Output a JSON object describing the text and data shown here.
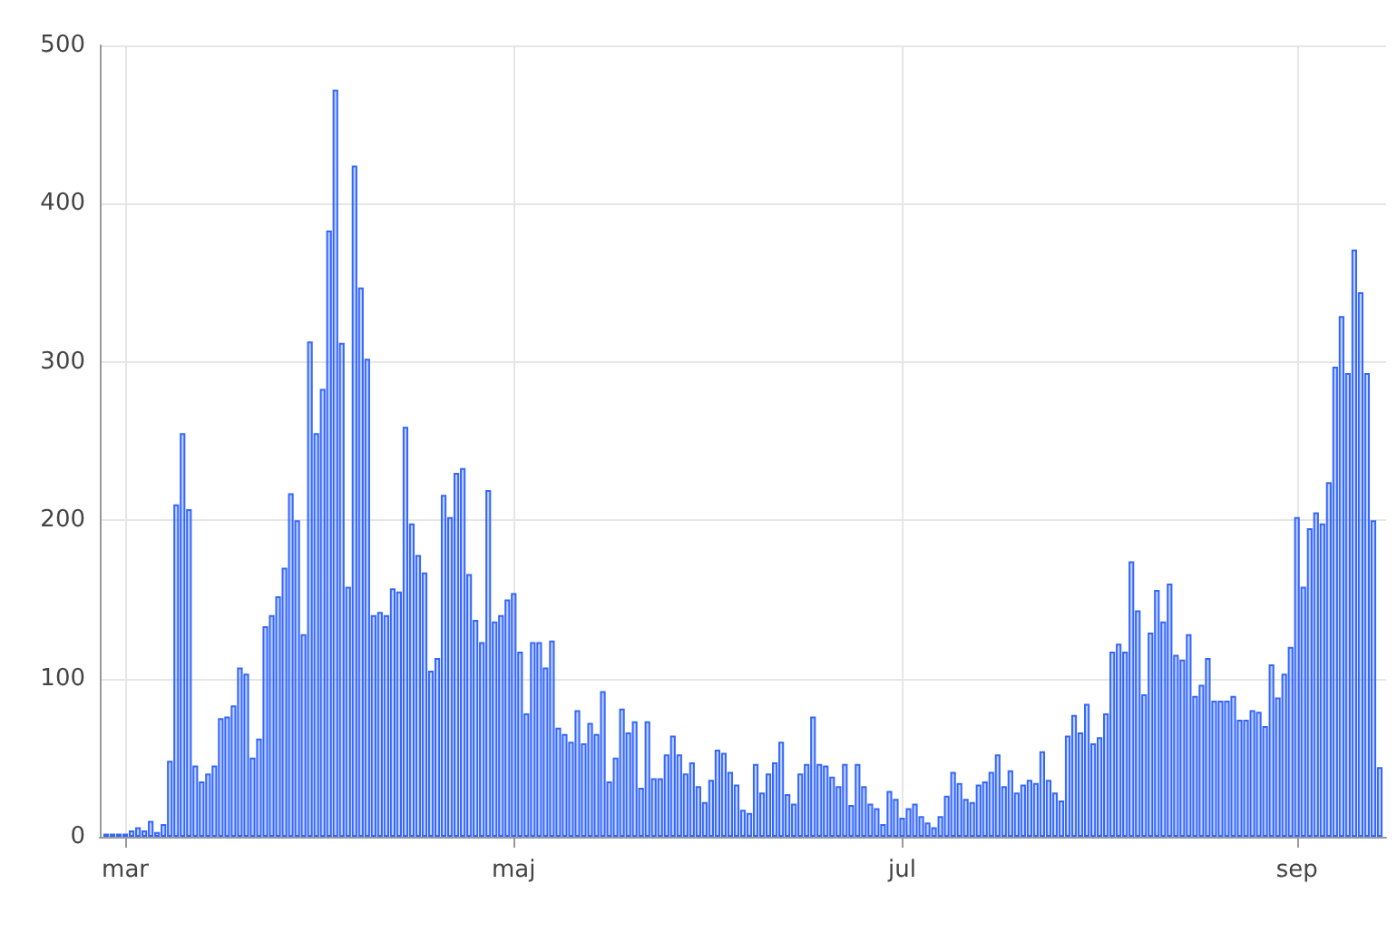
{
  "chart_data": {
    "type": "bar",
    "x": [
      "--02-27",
      "--02-28",
      "--02-29",
      "--03-01",
      "--03-02",
      "--03-03",
      "--03-04",
      "--03-05",
      "--03-06",
      "--03-07",
      "--03-08",
      "--03-09",
      "--03-10",
      "--03-11",
      "--03-12",
      "--03-13",
      "--03-14",
      "--03-15",
      "--03-16",
      "--03-17",
      "--03-18",
      "--03-19",
      "--03-20",
      "--03-21",
      "--03-22",
      "--03-23",
      "--03-24",
      "--03-25",
      "--03-26",
      "--03-27",
      "--03-28",
      "--03-29",
      "--03-30",
      "--03-31",
      "--04-01",
      "--04-02",
      "--04-03",
      "--04-04",
      "--04-05",
      "--04-06",
      "--04-07",
      "--04-08",
      "--04-09",
      "--04-10",
      "--04-11",
      "--04-12",
      "--04-13",
      "--04-14",
      "--04-15",
      "--04-16",
      "--04-17",
      "--04-18",
      "--04-19",
      "--04-20",
      "--04-21",
      "--04-22",
      "--04-23",
      "--04-24",
      "--04-25",
      "--04-26",
      "--04-27",
      "--04-28",
      "--04-29",
      "--04-30",
      "--05-01",
      "--05-02",
      "--05-03",
      "--05-04",
      "--05-05",
      "--05-06",
      "--05-07",
      "--05-08",
      "--05-09",
      "--05-10",
      "--05-11",
      "--05-12",
      "--05-13",
      "--05-14",
      "--05-15",
      "--05-16",
      "--05-17",
      "--05-18",
      "--05-19",
      "--05-20",
      "--05-21",
      "--05-22",
      "--05-23",
      "--05-24",
      "--05-25",
      "--05-26",
      "--05-27",
      "--05-28",
      "--05-29",
      "--05-30",
      "--05-31",
      "--06-01",
      "--06-02",
      "--06-03",
      "--06-04",
      "--06-05",
      "--06-06",
      "--06-07",
      "--06-08",
      "--06-09",
      "--06-10",
      "--06-11",
      "--06-12",
      "--06-13",
      "--06-14",
      "--06-15",
      "--06-16",
      "--06-17",
      "--06-18",
      "--06-19",
      "--06-20",
      "--06-21",
      "--06-22",
      "--06-23",
      "--06-24",
      "--06-25",
      "--06-26",
      "--06-27",
      "--06-28",
      "--06-29",
      "--06-30",
      "--07-01",
      "--07-02",
      "--07-03",
      "--07-04",
      "--07-05",
      "--07-06",
      "--07-07",
      "--07-08",
      "--07-09",
      "--07-10",
      "--07-11",
      "--07-12",
      "--07-13",
      "--07-14",
      "--07-15",
      "--07-16",
      "--07-17",
      "--07-18",
      "--07-19",
      "--07-20",
      "--07-21",
      "--07-22",
      "--07-23",
      "--07-24",
      "--07-25",
      "--07-26",
      "--07-27",
      "--07-28",
      "--07-29",
      "--07-30",
      "--07-31",
      "--08-01",
      "--08-02",
      "--08-03",
      "--08-04",
      "--08-05",
      "--08-06",
      "--08-07",
      "--08-08",
      "--08-09",
      "--08-10",
      "--08-11",
      "--08-12",
      "--08-13",
      "--08-14",
      "--08-15",
      "--08-16",
      "--08-17",
      "--08-18",
      "--08-19",
      "--08-20",
      "--08-21",
      "--08-22",
      "--08-23",
      "--08-24",
      "--08-25",
      "--08-26",
      "--08-27",
      "--08-28",
      "--08-29",
      "--08-30",
      "--08-31",
      "--09-01",
      "--09-02",
      "--09-03",
      "--09-04",
      "--09-05",
      "--09-06",
      "--09-07",
      "--09-08",
      "--09-09",
      "--09-10",
      "--09-11",
      "--09-12",
      "--09-13",
      "--09-14"
    ],
    "values": [
      2,
      2,
      2,
      2,
      4,
      6,
      4,
      10,
      3,
      8,
      48,
      210,
      255,
      207,
      45,
      35,
      40,
      45,
      75,
      76,
      83,
      107,
      103,
      50,
      62,
      133,
      140,
      152,
      170,
      217,
      200,
      128,
      313,
      255,
      283,
      383,
      472,
      312,
      158,
      424,
      347,
      302,
      140,
      142,
      140,
      157,
      155,
      259,
      198,
      178,
      167,
      105,
      113,
      216,
      202,
      230,
      233,
      166,
      137,
      123,
      219,
      136,
      140,
      150,
      154,
      117,
      78,
      123,
      123,
      107,
      124,
      69,
      65,
      60,
      80,
      59,
      72,
      65,
      92,
      35,
      50,
      81,
      66,
      73,
      31,
      73,
      37,
      37,
      52,
      64,
      52,
      40,
      47,
      32,
      22,
      36,
      55,
      53,
      41,
      33,
      17,
      15,
      46,
      28,
      40,
      47,
      60,
      27,
      21,
      40,
      46,
      76,
      46,
      45,
      38,
      32,
      46,
      20,
      46,
      32,
      21,
      18,
      8,
      29,
      24,
      12,
      18,
      21,
      13,
      9,
      6,
      13,
      26,
      41,
      34,
      24,
      22,
      33,
      35,
      41,
      52,
      32,
      42,
      28,
      33,
      36,
      34,
      54,
      36,
      28,
      23,
      64,
      77,
      66,
      84,
      59,
      63,
      78,
      117,
      122,
      117,
      174,
      143,
      90,
      129,
      156,
      136,
      160,
      115,
      112,
      128,
      89,
      96,
      113,
      86,
      86,
      86,
      89,
      74,
      74,
      80,
      79,
      70,
      109,
      88,
      103,
      120,
      202,
      158,
      195,
      205,
      198,
      224,
      297,
      329,
      293,
      371,
      344,
      293,
      200,
      44
    ],
    "color": "#3366ff",
    "xlim": [
      "--02-26",
      "--09-15"
    ],
    "xticks": [
      {
        "value": "--03-01",
        "label": "mar"
      },
      {
        "value": "--05-01",
        "label": "maj"
      },
      {
        "value": "--07-01",
        "label": "jul"
      },
      {
        "value": "--09-01",
        "label": "sep"
      }
    ],
    "ylim": [
      0,
      500
    ],
    "yticks": [
      0,
      100,
      200,
      300,
      400,
      500
    ],
    "grid": true
  }
}
